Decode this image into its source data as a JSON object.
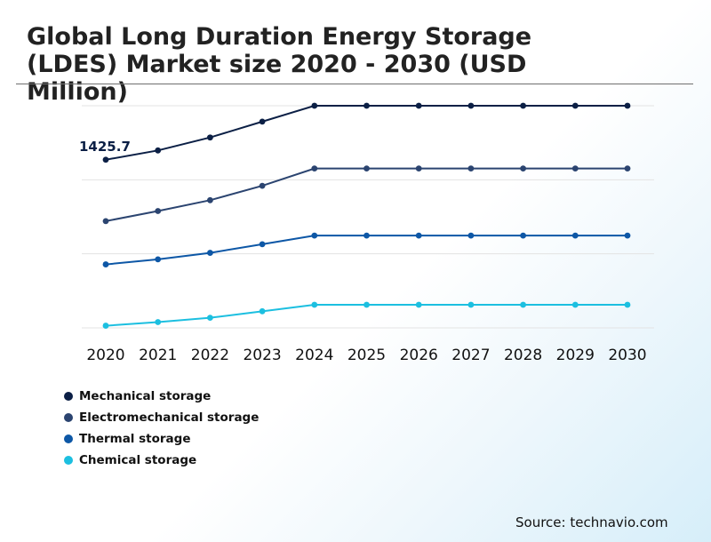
{
  "chart_data": {
    "type": "line",
    "title": "Global Long Duration Energy Storage (LDES) Market size 2020 - 2030 (USD Million)",
    "categories": [
      "2020",
      "2021",
      "2022",
      "2023",
      "2024",
      "2025",
      "2026",
      "2027",
      "2028",
      "2029",
      "2030"
    ],
    "series": [
      {
        "name": "Mechanical storage",
        "color": "#0b1f45",
        "values": [
          1425.7,
          1490,
          1580,
          1690,
          1800,
          1800,
          1800,
          1800,
          1800,
          1800,
          1800
        ]
      },
      {
        "name": "Electromechanical storage",
        "color": "#2b4470",
        "values": [
          1000,
          1070,
          1145,
          1245,
          1365,
          1365,
          1365,
          1365,
          1365,
          1365,
          1365
        ]
      },
      {
        "name": "Thermal storage",
        "color": "#0d57a6",
        "values": [
          700,
          735,
          780,
          840,
          900,
          900,
          900,
          900,
          900,
          900,
          900
        ]
      },
      {
        "name": "Chemical storage",
        "color": "#1cbfe0",
        "values": [
          275,
          300,
          330,
          375,
          420,
          420,
          420,
          420,
          420,
          420,
          420
        ]
      }
    ],
    "data_labels": [
      {
        "series": "Mechanical storage",
        "category": "2020",
        "text": "1425.7"
      }
    ],
    "ylim": [
      260,
      1800
    ],
    "xlabel": "",
    "ylabel": "",
    "grid": true,
    "legend_position": "bottom-left"
  },
  "source": "Source: technavio.com"
}
